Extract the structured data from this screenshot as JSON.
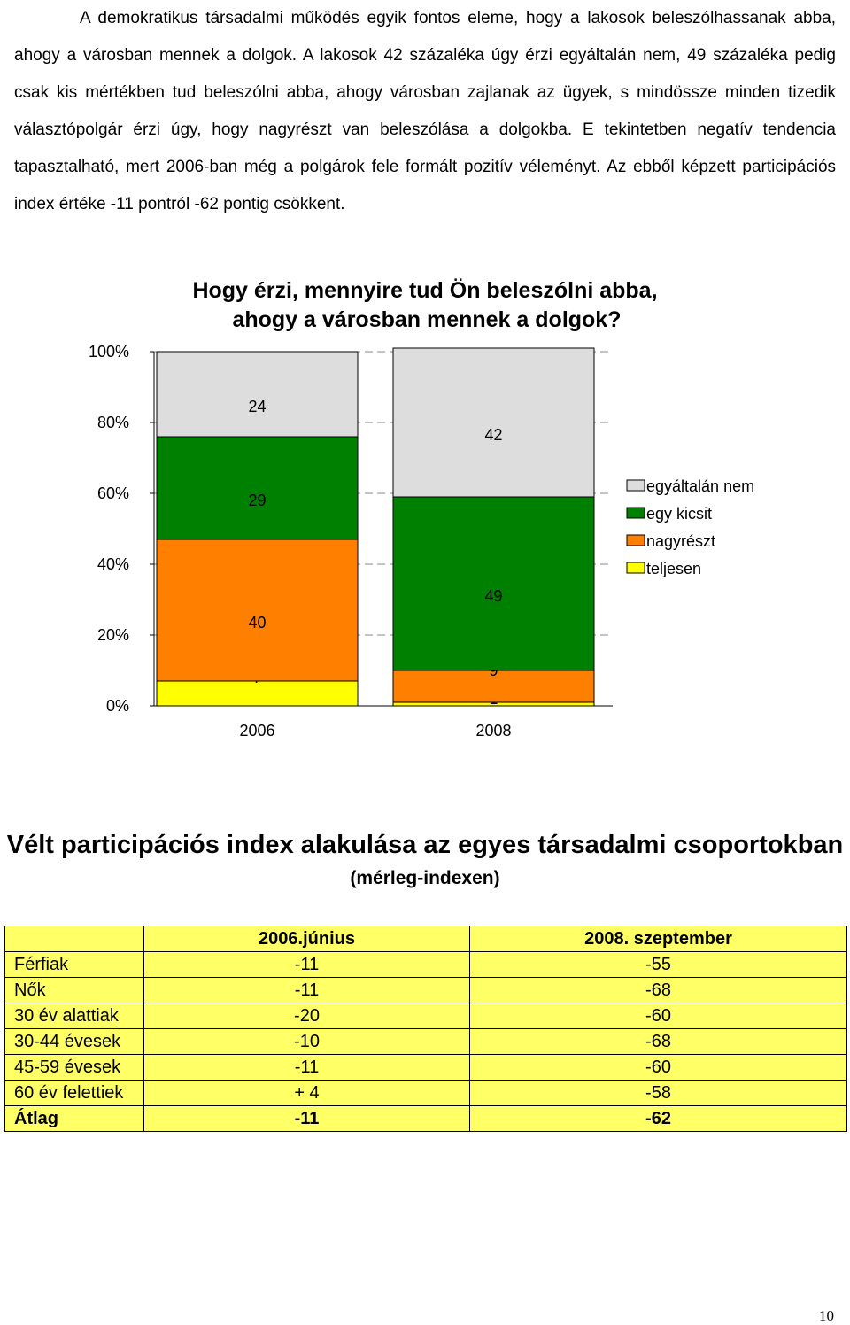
{
  "paragraph": {
    "line1": "A demokratikus társadalmi működés egyik fontos eleme, hogy a lakosok beleszólhassanak",
    "line2": "abba, ahogy a városban mennek a dolgok. A lakosok 42 százaléka úgy érzi egyáltalán nem, 49",
    "line3": "százaléka pedig csak kis mértékben tud beleszólni abba, ahogy városban zajlanak az ügyek, s",
    "line4": "mindössze minden tizedik választópolgár érzi úgy, hogy nagyrészt van beleszólása a dolgokba. E",
    "line5": "tekintetben negatív tendencia tapasztalható, mert 2006-ban még a polgárok fele formált pozitív",
    "line6": "véleményt. Az ebből képzett participációs index értéke -11 pontról -62 pontig csökkent."
  },
  "chart_data": {
    "type": "bar",
    "stacked": true,
    "title_line1": "Hogy érzi, mennyire tud Ön beleszólni abba,",
    "title_line2": "ahogy a városban mennek a dolgok?",
    "categories": [
      "2006",
      "2008"
    ],
    "series": [
      {
        "name": "teljesen",
        "values": [
          7,
          1
        ],
        "color": "#ffff00"
      },
      {
        "name": "nagyrészt",
        "values": [
          40,
          9
        ],
        "color": "#ff8000"
      },
      {
        "name": "egy kicsit",
        "values": [
          29,
          49
        ],
        "color": "#008000"
      },
      {
        "name": "egyáltalán nem",
        "values": [
          24,
          42
        ],
        "color": "#dddddd"
      }
    ],
    "legend_order": [
      "egyáltalán nem",
      "egy kicsit",
      "nagyrészt",
      "teljesen"
    ],
    "y_ticks": [
      "0%",
      "20%",
      "40%",
      "60%",
      "80%",
      "100%"
    ],
    "ylim": [
      0,
      100
    ],
    "grid": "dashed",
    "legend": "right"
  },
  "table": {
    "title": "Vélt participációs index alakulása az egyes társadalmi csoportokban",
    "subtitle": "(mérleg-indexen)",
    "headers": [
      "",
      "2006.június",
      "2008. szeptember"
    ],
    "rows": [
      {
        "label": "Férfiak",
        "v2006": "-11",
        "v2008": "-55"
      },
      {
        "label": "Nők",
        "v2006": "-11",
        "v2008": "-68"
      },
      {
        "label": "30 év alattiak",
        "v2006": "-20",
        "v2008": "-60"
      },
      {
        "label": "30-44 évesek",
        "v2006": "-10",
        "v2008": "-68"
      },
      {
        "label": "45-59 évesek",
        "v2006": "-11",
        "v2008": "-60"
      },
      {
        "label": "60 év felettiek",
        "v2006": "+ 4",
        "v2008": "-58"
      }
    ],
    "average": {
      "label": "Átlag",
      "v2006": "-11",
      "v2008": "-62"
    }
  },
  "page_number": "10"
}
